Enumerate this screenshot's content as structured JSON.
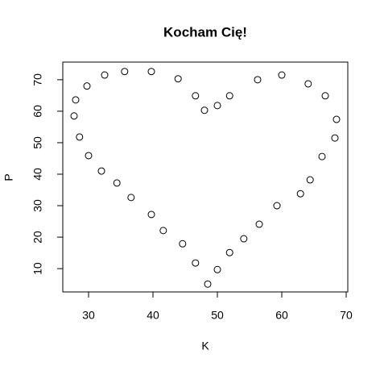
{
  "chart_data": {
    "type": "scatter",
    "title": "Kocham Cię!",
    "x_label": "K",
    "y_label": "P",
    "x": [
      27.75,
      28.0,
      29.75,
      32.5,
      35.6,
      39.75,
      43.9,
      46.6,
      48.0,
      50.0,
      51.9,
      56.25,
      60.0,
      64.1,
      66.75,
      68.5,
      68.25,
      66.25,
      64.4,
      62.9,
      59.25,
      56.5,
      54.1,
      51.9,
      50.0,
      48.5,
      46.6,
      44.6,
      41.6,
      39.75,
      36.6,
      34.4,
      32.0,
      30.0,
      28.6
    ],
    "values": [
      58.5,
      63.6,
      68.0,
      71.5,
      72.6,
      72.6,
      70.3,
      64.9,
      60.3,
      61.8,
      64.9,
      70.0,
      71.5,
      68.7,
      64.9,
      57.4,
      51.5,
      45.6,
      38.2,
      33.8,
      30.0,
      24.1,
      19.5,
      15.1,
      9.7,
      5.1,
      11.8,
      17.9,
      22.1,
      27.2,
      32.6,
      37.2,
      41.0,
      45.9,
      51.8
    ],
    "color": "#000000",
    "xlim": [
      26,
      70.25
    ],
    "ylim": [
      2.6,
      75.6
    ],
    "xticks": [
      30,
      40,
      50,
      60,
      70
    ],
    "yticks": [
      10,
      20,
      30,
      40,
      50,
      60,
      70
    ]
  }
}
